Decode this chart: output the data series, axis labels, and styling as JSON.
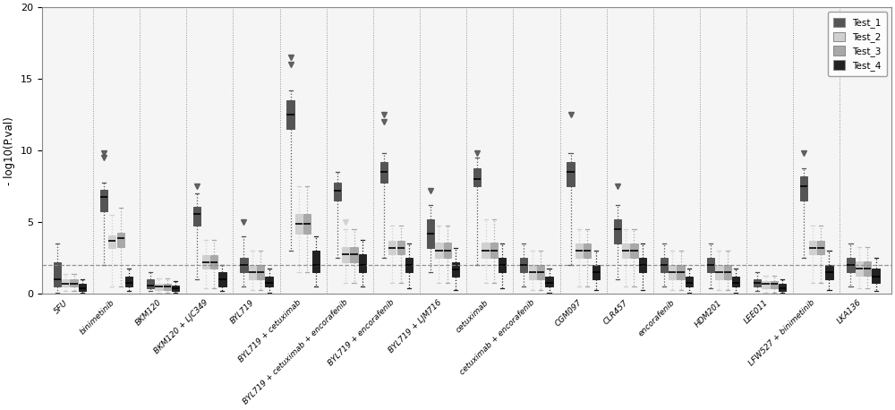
{
  "categories": [
    "5FU",
    "binimetinib",
    "BKM120",
    "BKM120 + LJC349",
    "BYL719",
    "BYL719 + cetuximab",
    "BYL719 + cetuximab + encorafenib",
    "BYL719 + encorafenib",
    "BYL719 + LJM716",
    "cetuximab",
    "cetuximab + encorafenib",
    "CGM097",
    "CLR457",
    "encorafenib",
    "HDM201",
    "LEE011",
    "LFW527 + binimetinib",
    "LKA136"
  ],
  "colors": {
    "Test_1": "#555555",
    "Test_2": "#d0d0d0",
    "Test_3": "#a8a8a8",
    "Test_4": "#222222"
  },
  "legend_labels": [
    "Test_1",
    "Test_2",
    "Test_3",
    "Test_4"
  ],
  "ylabel": "- log10(P.val)",
  "ylim": [
    0,
    20
  ],
  "yticks": [
    0,
    5,
    10,
    15,
    20
  ],
  "hline_y": 2,
  "background_color": "#ffffff",
  "plot_bg_color": "#f5f5f5",
  "box_data": {
    "5FU": {
      "Test_1": {
        "whislo": 0.1,
        "q1": 0.5,
        "med": 1.0,
        "q3": 2.2,
        "whishi": 3.5,
        "fliers_high": [],
        "fliers_low": []
      },
      "Test_2": {
        "whislo": 0.2,
        "q1": 0.5,
        "med": 0.7,
        "q3": 1.0,
        "whishi": 1.4,
        "fliers_high": [],
        "fliers_low": []
      },
      "Test_3": {
        "whislo": 0.2,
        "q1": 0.5,
        "med": 0.7,
        "q3": 1.0,
        "whishi": 1.4,
        "fliers_high": [],
        "fliers_low": []
      },
      "Test_4": {
        "whislo": 0.1,
        "q1": 0.2,
        "med": 0.4,
        "q3": 0.7,
        "whishi": 1.0,
        "fliers_high": [],
        "fliers_low": []
      }
    },
    "binimetinib": {
      "Test_1": {
        "whislo": 2.0,
        "q1": 5.8,
        "med": 6.8,
        "q3": 7.3,
        "whishi": 7.8,
        "fliers_high": [
          9.5,
          9.8
        ],
        "fliers_low": []
      },
      "Test_2": {
        "whislo": 0.5,
        "q1": 3.2,
        "med": 3.7,
        "q3": 4.1,
        "whishi": 5.5,
        "fliers_high": [],
        "fliers_low": []
      },
      "Test_3": {
        "whislo": 0.5,
        "q1": 3.3,
        "med": 3.9,
        "q3": 4.3,
        "whishi": 6.0,
        "fliers_high": [],
        "fliers_low": []
      },
      "Test_4": {
        "whislo": 0.2,
        "q1": 0.5,
        "med": 0.8,
        "q3": 1.2,
        "whishi": 1.8,
        "fliers_high": [],
        "fliers_low": []
      }
    },
    "BKM120": {
      "Test_1": {
        "whislo": 0.2,
        "q1": 0.4,
        "med": 0.6,
        "q3": 1.0,
        "whishi": 1.5,
        "fliers_high": [],
        "fliers_low": []
      },
      "Test_2": {
        "whislo": 0.1,
        "q1": 0.3,
        "med": 0.5,
        "q3": 0.7,
        "whishi": 1.1,
        "fliers_high": [],
        "fliers_low": []
      },
      "Test_3": {
        "whislo": 0.1,
        "q1": 0.3,
        "med": 0.5,
        "q3": 0.7,
        "whishi": 1.1,
        "fliers_high": [],
        "fliers_low": []
      },
      "Test_4": {
        "whislo": 0.1,
        "q1": 0.2,
        "med": 0.4,
        "q3": 0.6,
        "whishi": 0.9,
        "fliers_high": [],
        "fliers_low": []
      }
    },
    "BKM120 + LJC349": {
      "Test_1": {
        "whislo": 1.0,
        "q1": 4.8,
        "med": 5.6,
        "q3": 6.1,
        "whishi": 7.0,
        "fliers_high": [
          7.5
        ],
        "fliers_low": []
      },
      "Test_2": {
        "whislo": 0.4,
        "q1": 1.8,
        "med": 2.2,
        "q3": 2.7,
        "whishi": 3.8,
        "fliers_high": [],
        "fliers_low": []
      },
      "Test_3": {
        "whislo": 0.4,
        "q1": 1.8,
        "med": 2.2,
        "q3": 2.7,
        "whishi": 3.8,
        "fliers_high": [],
        "fliers_low": []
      },
      "Test_4": {
        "whislo": 0.2,
        "q1": 0.5,
        "med": 1.0,
        "q3": 1.5,
        "whishi": 2.0,
        "fliers_high": [],
        "fliers_low": []
      }
    },
    "BYL719": {
      "Test_1": {
        "whislo": 0.5,
        "q1": 1.5,
        "med": 2.0,
        "q3": 2.5,
        "whishi": 4.0,
        "fliers_high": [
          5.0
        ],
        "fliers_low": []
      },
      "Test_2": {
        "whislo": 0.3,
        "q1": 1.0,
        "med": 1.5,
        "q3": 2.0,
        "whishi": 3.0,
        "fliers_high": [],
        "fliers_low": []
      },
      "Test_3": {
        "whislo": 0.3,
        "q1": 1.0,
        "med": 1.5,
        "q3": 2.0,
        "whishi": 3.0,
        "fliers_high": [],
        "fliers_low": []
      },
      "Test_4": {
        "whislo": 0.1,
        "q1": 0.5,
        "med": 0.8,
        "q3": 1.2,
        "whishi": 1.8,
        "fliers_high": [],
        "fliers_low": []
      }
    },
    "BYL719 + cetuximab": {
      "Test_1": {
        "whislo": 3.0,
        "q1": 11.5,
        "med": 12.5,
        "q3": 13.5,
        "whishi": 14.2,
        "fliers_high": [
          16.5,
          16.0
        ],
        "fliers_low": []
      },
      "Test_2": {
        "whislo": 1.5,
        "q1": 4.2,
        "med": 4.9,
        "q3": 5.6,
        "whishi": 7.5,
        "fliers_high": [],
        "fliers_low": []
      },
      "Test_3": {
        "whislo": 1.5,
        "q1": 4.2,
        "med": 4.9,
        "q3": 5.6,
        "whishi": 7.5,
        "fliers_high": [],
        "fliers_low": []
      },
      "Test_4": {
        "whislo": 0.5,
        "q1": 1.5,
        "med": 2.0,
        "q3": 3.0,
        "whishi": 4.0,
        "fliers_high": [],
        "fliers_low": []
      }
    },
    "BYL719 + cetuximab + encorafenib": {
      "Test_1": {
        "whislo": 2.5,
        "q1": 6.5,
        "med": 7.2,
        "q3": 7.8,
        "whishi": 8.5,
        "fliers_high": [],
        "fliers_low": []
      },
      "Test_2": {
        "whislo": 0.8,
        "q1": 2.2,
        "med": 2.8,
        "q3": 3.3,
        "whishi": 4.5,
        "fliers_high": [
          5.0
        ],
        "fliers_low": []
      },
      "Test_3": {
        "whislo": 0.8,
        "q1": 2.2,
        "med": 2.8,
        "q3": 3.3,
        "whishi": 4.5,
        "fliers_high": [],
        "fliers_low": []
      },
      "Test_4": {
        "whislo": 0.5,
        "q1": 1.5,
        "med": 2.0,
        "q3": 2.8,
        "whishi": 3.8,
        "fliers_high": [],
        "fliers_low": []
      }
    },
    "BYL719 + encorafenib": {
      "Test_1": {
        "whislo": 2.5,
        "q1": 7.8,
        "med": 8.5,
        "q3": 9.2,
        "whishi": 9.8,
        "fliers_high": [
          12.0,
          12.5
        ],
        "fliers_low": []
      },
      "Test_2": {
        "whislo": 0.8,
        "q1": 2.8,
        "med": 3.2,
        "q3": 3.7,
        "whishi": 4.8,
        "fliers_high": [],
        "fliers_low": []
      },
      "Test_3": {
        "whislo": 0.8,
        "q1": 2.8,
        "med": 3.2,
        "q3": 3.7,
        "whishi": 4.8,
        "fliers_high": [],
        "fliers_low": []
      },
      "Test_4": {
        "whislo": 0.4,
        "q1": 1.5,
        "med": 2.0,
        "q3": 2.5,
        "whishi": 3.5,
        "fliers_high": [],
        "fliers_low": []
      }
    },
    "BYL719 + LJM716": {
      "Test_1": {
        "whislo": 1.5,
        "q1": 3.2,
        "med": 4.2,
        "q3": 5.2,
        "whishi": 6.2,
        "fliers_high": [
          7.2
        ],
        "fliers_low": []
      },
      "Test_2": {
        "whislo": 0.8,
        "q1": 2.5,
        "med": 3.0,
        "q3": 3.6,
        "whishi": 4.8,
        "fliers_high": [],
        "fliers_low": []
      },
      "Test_3": {
        "whislo": 0.8,
        "q1": 2.5,
        "med": 3.0,
        "q3": 3.6,
        "whishi": 4.8,
        "fliers_high": [],
        "fliers_low": []
      },
      "Test_4": {
        "whislo": 0.3,
        "q1": 1.2,
        "med": 1.7,
        "q3": 2.2,
        "whishi": 3.2,
        "fliers_high": [],
        "fliers_low": []
      }
    },
    "cetuximab": {
      "Test_1": {
        "whislo": 2.0,
        "q1": 7.5,
        "med": 8.0,
        "q3": 8.8,
        "whishi": 9.5,
        "fliers_high": [
          9.8
        ],
        "fliers_low": []
      },
      "Test_2": {
        "whislo": 0.8,
        "q1": 2.5,
        "med": 3.0,
        "q3": 3.6,
        "whishi": 5.2,
        "fliers_high": [],
        "fliers_low": []
      },
      "Test_3": {
        "whislo": 0.8,
        "q1": 2.5,
        "med": 3.0,
        "q3": 3.6,
        "whishi": 5.2,
        "fliers_high": [],
        "fliers_low": []
      },
      "Test_4": {
        "whislo": 0.4,
        "q1": 1.5,
        "med": 2.0,
        "q3": 2.5,
        "whishi": 3.5,
        "fliers_high": [],
        "fliers_low": []
      }
    },
    "cetuximab + encorafenib": {
      "Test_1": {
        "whislo": 0.5,
        "q1": 1.5,
        "med": 2.0,
        "q3": 2.5,
        "whishi": 3.5,
        "fliers_high": [],
        "fliers_low": []
      },
      "Test_2": {
        "whislo": 0.3,
        "q1": 1.0,
        "med": 1.5,
        "q3": 2.0,
        "whishi": 3.0,
        "fliers_high": [],
        "fliers_low": []
      },
      "Test_3": {
        "whislo": 0.3,
        "q1": 1.0,
        "med": 1.5,
        "q3": 2.0,
        "whishi": 3.0,
        "fliers_high": [],
        "fliers_low": []
      },
      "Test_4": {
        "whislo": 0.1,
        "q1": 0.5,
        "med": 0.8,
        "q3": 1.2,
        "whishi": 1.8,
        "fliers_high": [],
        "fliers_low": []
      }
    },
    "CGM097": {
      "Test_1": {
        "whislo": 2.0,
        "q1": 7.5,
        "med": 8.5,
        "q3": 9.2,
        "whishi": 9.8,
        "fliers_high": [
          12.5
        ],
        "fliers_low": []
      },
      "Test_2": {
        "whislo": 0.5,
        "q1": 2.5,
        "med": 3.0,
        "q3": 3.5,
        "whishi": 4.5,
        "fliers_high": [],
        "fliers_low": []
      },
      "Test_3": {
        "whislo": 0.5,
        "q1": 2.5,
        "med": 3.0,
        "q3": 3.5,
        "whishi": 4.5,
        "fliers_high": [],
        "fliers_low": []
      },
      "Test_4": {
        "whislo": 0.3,
        "q1": 1.0,
        "med": 1.5,
        "q3": 2.0,
        "whishi": 3.0,
        "fliers_high": [],
        "fliers_low": []
      }
    },
    "CLR457": {
      "Test_1": {
        "whislo": 1.0,
        "q1": 3.5,
        "med": 4.5,
        "q3": 5.2,
        "whishi": 6.2,
        "fliers_high": [
          7.5
        ],
        "fliers_low": []
      },
      "Test_2": {
        "whislo": 0.5,
        "q1": 2.5,
        "med": 3.0,
        "q3": 3.5,
        "whishi": 4.5,
        "fliers_high": [],
        "fliers_low": []
      },
      "Test_3": {
        "whislo": 0.5,
        "q1": 2.5,
        "med": 3.0,
        "q3": 3.5,
        "whishi": 4.5,
        "fliers_high": [],
        "fliers_low": []
      },
      "Test_4": {
        "whislo": 0.3,
        "q1": 1.5,
        "med": 2.0,
        "q3": 2.5,
        "whishi": 3.5,
        "fliers_high": [],
        "fliers_low": []
      }
    },
    "encorafenib": {
      "Test_1": {
        "whislo": 0.5,
        "q1": 1.5,
        "med": 2.0,
        "q3": 2.5,
        "whishi": 3.5,
        "fliers_high": [],
        "fliers_low": []
      },
      "Test_2": {
        "whislo": 0.3,
        "q1": 1.0,
        "med": 1.5,
        "q3": 2.0,
        "whishi": 3.0,
        "fliers_high": [],
        "fliers_low": []
      },
      "Test_3": {
        "whislo": 0.3,
        "q1": 1.0,
        "med": 1.5,
        "q3": 2.0,
        "whishi": 3.0,
        "fliers_high": [],
        "fliers_low": []
      },
      "Test_4": {
        "whislo": 0.1,
        "q1": 0.5,
        "med": 0.8,
        "q3": 1.2,
        "whishi": 1.8,
        "fliers_high": [],
        "fliers_low": []
      }
    },
    "HDM201": {
      "Test_1": {
        "whislo": 0.4,
        "q1": 1.5,
        "med": 2.0,
        "q3": 2.5,
        "whishi": 3.5,
        "fliers_high": [],
        "fliers_low": []
      },
      "Test_2": {
        "whislo": 0.3,
        "q1": 1.0,
        "med": 1.5,
        "q3": 2.0,
        "whishi": 3.0,
        "fliers_high": [],
        "fliers_low": []
      },
      "Test_3": {
        "whislo": 0.3,
        "q1": 1.0,
        "med": 1.5,
        "q3": 2.0,
        "whishi": 3.0,
        "fliers_high": [],
        "fliers_low": []
      },
      "Test_4": {
        "whislo": 0.1,
        "q1": 0.5,
        "med": 0.8,
        "q3": 1.2,
        "whishi": 1.8,
        "fliers_high": [],
        "fliers_low": []
      }
    },
    "LEE011": {
      "Test_1": {
        "whislo": 0.2,
        "q1": 0.5,
        "med": 0.8,
        "q3": 1.0,
        "whishi": 1.5,
        "fliers_high": [],
        "fliers_low": []
      },
      "Test_2": {
        "whislo": 0.1,
        "q1": 0.4,
        "med": 0.7,
        "q3": 0.9,
        "whishi": 1.3,
        "fliers_high": [],
        "fliers_low": []
      },
      "Test_3": {
        "whislo": 0.1,
        "q1": 0.4,
        "med": 0.7,
        "q3": 0.9,
        "whishi": 1.3,
        "fliers_high": [],
        "fliers_low": []
      },
      "Test_4": {
        "whislo": 0.1,
        "q1": 0.2,
        "med": 0.4,
        "q3": 0.7,
        "whishi": 1.0,
        "fliers_high": [],
        "fliers_low": []
      }
    },
    "LFW527 + binimetinib": {
      "Test_1": {
        "whislo": 2.5,
        "q1": 6.5,
        "med": 7.5,
        "q3": 8.2,
        "whishi": 8.8,
        "fliers_high": [
          9.8
        ],
        "fliers_low": []
      },
      "Test_2": {
        "whislo": 0.8,
        "q1": 2.8,
        "med": 3.2,
        "q3": 3.7,
        "whishi": 4.8,
        "fliers_high": [],
        "fliers_low": []
      },
      "Test_3": {
        "whislo": 0.8,
        "q1": 2.8,
        "med": 3.2,
        "q3": 3.7,
        "whishi": 4.8,
        "fliers_high": [],
        "fliers_low": []
      },
      "Test_4": {
        "whislo": 0.3,
        "q1": 1.0,
        "med": 1.5,
        "q3": 2.0,
        "whishi": 3.0,
        "fliers_high": [],
        "fliers_low": []
      }
    },
    "LKA136": {
      "Test_1": {
        "whislo": 0.5,
        "q1": 1.5,
        "med": 2.0,
        "q3": 2.5,
        "whishi": 3.5,
        "fliers_high": [],
        "fliers_low": []
      },
      "Test_2": {
        "whislo": 0.4,
        "q1": 1.3,
        "med": 1.8,
        "q3": 2.3,
        "whishi": 3.3,
        "fliers_high": [],
        "fliers_low": []
      },
      "Test_3": {
        "whislo": 0.4,
        "q1": 1.3,
        "med": 1.8,
        "q3": 2.3,
        "whishi": 3.3,
        "fliers_high": [],
        "fliers_low": []
      },
      "Test_4": {
        "whislo": 0.2,
        "q1": 0.8,
        "med": 1.2,
        "q3": 1.8,
        "whishi": 2.5,
        "fliers_high": [],
        "fliers_low": []
      }
    }
  }
}
